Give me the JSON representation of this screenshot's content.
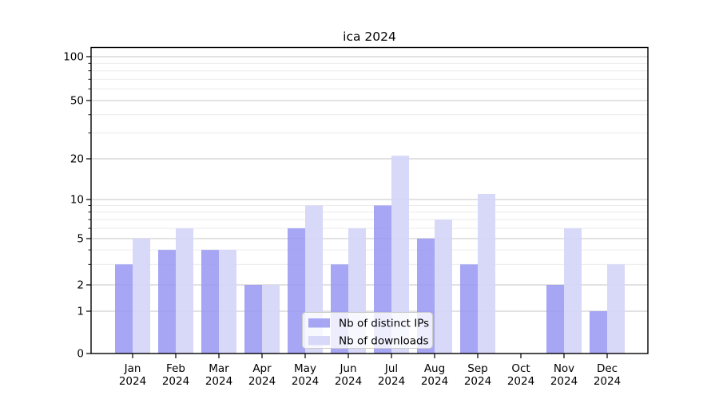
{
  "figure": {
    "title": "ica 2024"
  },
  "chart_data": {
    "type": "bar",
    "title": "ica 2024",
    "categories": [
      "Jan",
      "Feb",
      "Mar",
      "Apr",
      "May",
      "Jun",
      "Jul",
      "Aug",
      "Sep",
      "Oct",
      "Nov",
      "Dec"
    ],
    "category_year_line": "2024",
    "series": [
      {
        "name": "Nb of distinct IPs",
        "color": "#a6a6f4",
        "base_color": "#9696f2",
        "fill_opacity": 0.85,
        "values": [
          3,
          4,
          4,
          2,
          6,
          3,
          9,
          5,
          3,
          0,
          2,
          1
        ]
      },
      {
        "name": "Nb of downloads",
        "color": "#d8d8f9",
        "base_color": "#d5d5f8",
        "fill_opacity": 0.92,
        "values": [
          5,
          6,
          4,
          2,
          9,
          6,
          21,
          7,
          11,
          0,
          6,
          3
        ]
      }
    ],
    "y_axis": {
      "scale": "log-like (symlog)",
      "major_ticks": [
        0,
        1,
        2,
        5,
        10,
        20,
        50,
        100
      ],
      "minor_ticks": [
        3,
        4,
        6,
        7,
        8,
        9,
        30,
        40,
        60,
        70,
        80,
        90
      ],
      "range": [
        0,
        120
      ]
    },
    "x_axis": {
      "second_line": "2024"
    },
    "legend": {
      "position": "lower center",
      "entries": [
        "Nb of distinct IPs",
        "Nb of downloads"
      ]
    },
    "grid": true,
    "colors": {
      "major_grid": "#c6c6c6",
      "minor_grid": "#ececec",
      "spine": "#000000",
      "text": "#000000",
      "legend_bg_alpha": 0.8,
      "legend_border": "#cccccc"
    }
  }
}
